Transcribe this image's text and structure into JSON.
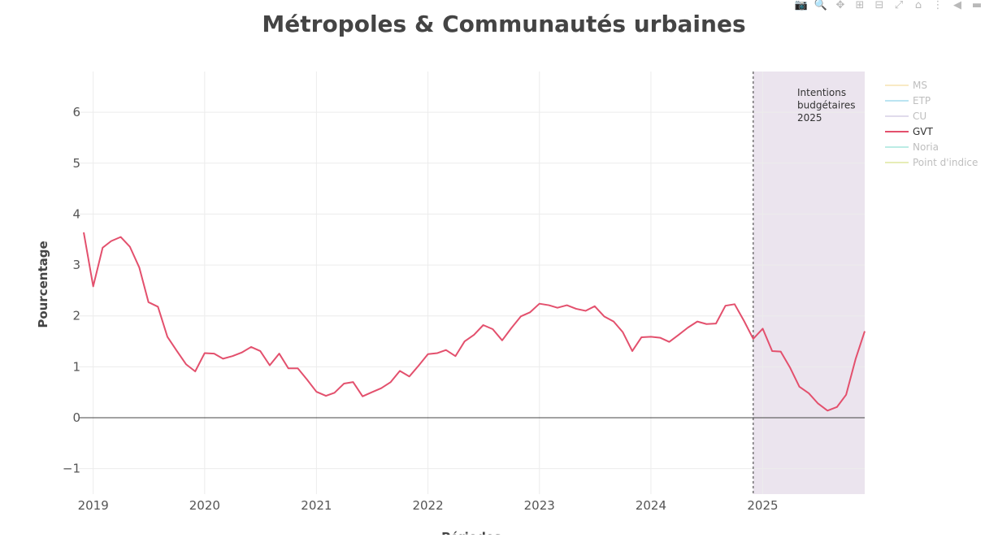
{
  "chart_data": {
    "type": "line",
    "title": "Métropoles & Communautés urbaines",
    "xlabel": "Périodes",
    "ylabel": "Pourcentage",
    "ylim": [
      -1.5,
      6.8
    ],
    "yticks": [
      -1,
      0,
      1,
      2,
      3,
      4,
      5,
      6
    ],
    "ytick_labels": [
      "−1",
      "0",
      "1",
      "2",
      "3",
      "4",
      "5",
      "6"
    ],
    "xticks": [
      "2019",
      "2020",
      "2021",
      "2022",
      "2023",
      "2024",
      "2025"
    ],
    "xlim": [
      "2018-11-15",
      "2025-12-01"
    ],
    "grid": true,
    "legend_position": "right",
    "legend": [
      {
        "name": "MS",
        "color": "#f7e4b2",
        "active": false
      },
      {
        "name": "ETP",
        "color": "#a5dcee",
        "active": false
      },
      {
        "name": "CU",
        "color": "#d6d0e6",
        "active": false
      },
      {
        "name": "GVT",
        "color": "#e3506d",
        "active": true
      },
      {
        "name": "Noria",
        "color": "#a6e6dd",
        "active": false
      },
      {
        "name": "Point d'indice",
        "color": "#dfe8a0",
        "active": false
      }
    ],
    "annotation": {
      "lines": [
        "Intentions",
        "budgétaires",
        "2025"
      ],
      "band_start": "2024-12-01",
      "band_end": "2025-12-01",
      "band_color": "#ebe4ee"
    },
    "series": [
      {
        "name": "GVT",
        "color": "#e3506d",
        "x": [
          "2018-12",
          "2019-01",
          "2019-02",
          "2019-03",
          "2019-04",
          "2019-05",
          "2019-06",
          "2019-07",
          "2019-08",
          "2019-09",
          "2019-10",
          "2019-11",
          "2019-12",
          "2020-01",
          "2020-02",
          "2020-03",
          "2020-04",
          "2020-05",
          "2020-06",
          "2020-07",
          "2020-08",
          "2020-09",
          "2020-10",
          "2020-11",
          "2020-12",
          "2021-01",
          "2021-02",
          "2021-03",
          "2021-04",
          "2021-05",
          "2021-06",
          "2021-07",
          "2021-08",
          "2021-09",
          "2021-10",
          "2021-11",
          "2021-12",
          "2022-01",
          "2022-02",
          "2022-03",
          "2022-04",
          "2022-05",
          "2022-06",
          "2022-07",
          "2022-08",
          "2022-09",
          "2022-10",
          "2022-11",
          "2022-12",
          "2023-01",
          "2023-02",
          "2023-03",
          "2023-04",
          "2023-05",
          "2023-06",
          "2023-07",
          "2023-08",
          "2023-09",
          "2023-10",
          "2023-11",
          "2023-12",
          "2024-01",
          "2024-02",
          "2024-03",
          "2024-04",
          "2024-05",
          "2024-06",
          "2024-07",
          "2024-08",
          "2024-09",
          "2024-10",
          "2024-11",
          "2024-12",
          "2025-01",
          "2025-02",
          "2025-03",
          "2025-04",
          "2025-05",
          "2025-06",
          "2025-07",
          "2025-08",
          "2025-09",
          "2025-10",
          "2025-11",
          "2025-12"
        ],
        "y": [
          3.64,
          2.58,
          3.34,
          3.47,
          3.55,
          3.36,
          2.95,
          2.27,
          2.18,
          1.59,
          1.32,
          1.05,
          0.91,
          1.27,
          1.26,
          1.16,
          1.21,
          1.28,
          1.39,
          1.31,
          1.03,
          1.26,
          0.97,
          0.97,
          0.75,
          0.51,
          0.43,
          0.49,
          0.67,
          0.7,
          0.42,
          0.5,
          0.58,
          0.7,
          0.92,
          0.81,
          1.02,
          1.25,
          1.27,
          1.33,
          1.21,
          1.5,
          1.63,
          1.82,
          1.74,
          1.52,
          1.76,
          1.99,
          2.07,
          2.24,
          2.21,
          2.16,
          2.21,
          2.14,
          2.1,
          2.19,
          1.99,
          1.89,
          1.68,
          1.31,
          1.58,
          1.59,
          1.57,
          1.49,
          1.63,
          1.77,
          1.89,
          1.84,
          1.85,
          2.2,
          2.23,
          1.9,
          1.55,
          1.75,
          1.31,
          1.3,
          0.98,
          0.61,
          0.48,
          0.28,
          0.14,
          0.21,
          0.45,
          1.15,
          1.7
        ]
      }
    ]
  },
  "toolbar": {
    "icons": [
      "camera-icon",
      "zoom-icon",
      "pan-icon",
      "zoom-in-icon",
      "zoom-out-icon",
      "autoscale-icon",
      "reset-axes-icon",
      "spike-lines-icon",
      "hover-closest-icon",
      "hover-compare-icon"
    ],
    "glyphs": [
      "📷",
      "🔍",
      "✥",
      "⊞",
      "⊟",
      "⤢",
      "⌂",
      "⋮",
      "◀",
      "▬"
    ]
  }
}
